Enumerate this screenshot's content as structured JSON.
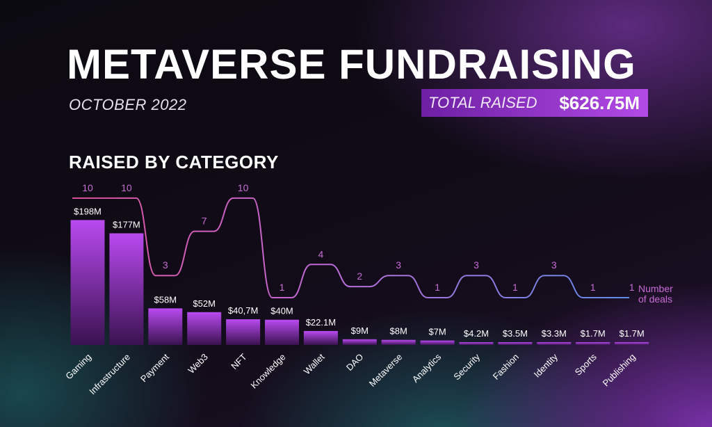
{
  "header": {
    "title": "METAVERSE FUNDRAISING",
    "subtitle": "OCTOBER 2022",
    "total_label": "TOTAL RAISED",
    "total_value": "$626.75M"
  },
  "section": {
    "title": "RAISED BY CATEGORY"
  },
  "legend": {
    "line1": "Number",
    "line2": "of deals"
  },
  "colors": {
    "bar_top": "#b94af0",
    "bar_bottom": "#3a1250",
    "line_start": "#e0509a",
    "line_mid": "#c06ad8",
    "line_end": "#5f8ce8",
    "accent": "#b24ae6"
  },
  "chart_data": {
    "type": "bar",
    "title": "RAISED BY CATEGORY",
    "categories": [
      "Gaming",
      "Infrastructure",
      "Payment",
      "Web3",
      "NFT",
      "Knowledge",
      "Wallet",
      "DAO",
      "Metaverse",
      "Analytics",
      "Security",
      "Fashion",
      "Identity",
      "Sports",
      "Publishing"
    ],
    "series": [
      {
        "values": [
          198,
          177,
          58,
          52,
          40.7,
          40,
          22.1,
          9,
          8,
          7,
          4.2,
          3.5,
          3.3,
          1.7,
          1.7
        ],
        "labels": [
          "$198M",
          "$177M",
          "$58M",
          "$52M",
          "$40,7M",
          "$40M",
          "$22.1M",
          "$9M",
          "$8M",
          "$7M",
          "$4.2M",
          "$3.5M",
          "$3.3M",
          "$1.7M",
          "$1.7M"
        ]
      },
      {
        "name": "Number of deals",
        "type": "line",
        "values": [
          10,
          10,
          3,
          7,
          10,
          1,
          4,
          2,
          3,
          1,
          3,
          1,
          3,
          1,
          1
        ]
      }
    ],
    "ylim": [
      0,
      198
    ],
    "grid": false
  }
}
